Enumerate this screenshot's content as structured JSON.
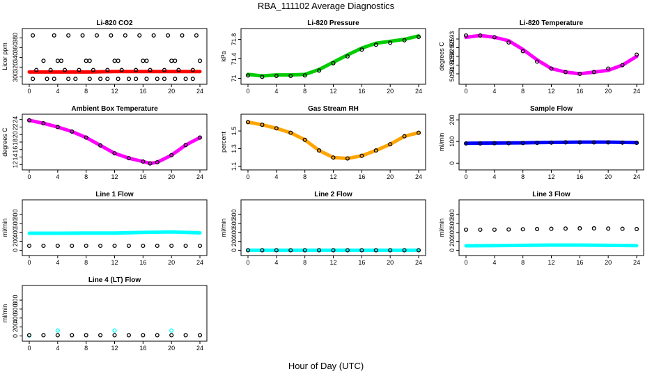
{
  "figure": {
    "title": "RBA_111102  Average Diagnostics",
    "x_axis_title": "Hour of Day (UTC)"
  },
  "colors": {
    "black": "#000000",
    "red": "#ff0000",
    "green": "#00cc00",
    "magenta": "#ff00ff",
    "orange": "#ffa500",
    "blue": "#0000ff",
    "cyan": "#00ffff"
  },
  "chart_data": [
    {
      "title": "Li-820 CO2",
      "type": "scatter",
      "ylabel": "Licor ppm",
      "xlim": [
        0,
        24
      ],
      "ylim": [
        292,
        392
      ],
      "xticks": [
        0,
        4,
        8,
        12,
        16,
        20,
        24
      ],
      "yticks": [
        300,
        320,
        340,
        360,
        380
      ],
      "series": [
        {
          "name": "raw",
          "color": "red",
          "style": "band",
          "x": [
            0,
            4,
            8,
            12,
            16,
            20,
            24
          ],
          "y": [
            310,
            310,
            310,
            311,
            311,
            311,
            311
          ]
        },
        {
          "name": "average",
          "color": "black",
          "style": "circle",
          "x": [
            0.5,
            2,
            3.5,
            4.5,
            5.5,
            7.5,
            8.5,
            9.5,
            11.5,
            12.5,
            13.5,
            15.5,
            16.5,
            17.5,
            19.5,
            20.5,
            21.5,
            23.5
          ],
          "y": [
            385,
            333,
            385,
            333,
            385,
            385,
            333,
            385,
            385,
            333,
            385,
            385,
            333,
            385,
            385,
            333,
            385,
            385
          ]
        },
        {
          "name": "average",
          "color": "black",
          "style": "circle",
          "x": [
            0.5,
            2.5,
            3.5,
            5.5,
            6.5,
            8.5,
            10,
            11,
            12.5,
            14,
            15,
            16.5,
            18,
            19,
            20.5,
            22,
            23
          ],
          "y": [
            296,
            296,
            296,
            296,
            296,
            296,
            296,
            296,
            296,
            296,
            296,
            296,
            296,
            296,
            296,
            296,
            296
          ]
        },
        {
          "name": "average",
          "color": "black",
          "style": "circle",
          "x": [
            1,
            3,
            5,
            7,
            9,
            11,
            13,
            15,
            17,
            19,
            21,
            23
          ],
          "y": [
            314,
            314,
            314,
            314,
            314,
            314,
            314,
            314,
            314,
            314,
            314,
            314
          ]
        },
        {
          "name": "average",
          "color": "black",
          "style": "circle",
          "x": [
            4,
            8,
            12,
            16,
            20,
            24
          ],
          "y": [
            333,
            333,
            333,
            333,
            333,
            333
          ]
        }
      ]
    },
    {
      "title": "Li-820 Pressure",
      "type": "scatter",
      "ylabel": "kPa",
      "xlim": [
        0,
        24
      ],
      "ylim": [
        70.95,
        71.95
      ],
      "xticks": [
        0,
        4,
        8,
        12,
        16,
        20,
        24
      ],
      "yticks": [
        71.0,
        71.4,
        71.8
      ],
      "series": [
        {
          "name": "raw",
          "color": "green",
          "style": "band",
          "x": [
            0,
            2,
            4,
            6,
            8,
            10,
            12,
            14,
            16,
            18,
            20,
            22,
            24
          ],
          "y": [
            71.08,
            71.05,
            71.07,
            71.07,
            71.08,
            71.18,
            71.33,
            71.48,
            71.62,
            71.72,
            71.76,
            71.8,
            71.87
          ]
        },
        {
          "name": "average",
          "color": "black",
          "style": "circle",
          "x": [
            0,
            2,
            4,
            6,
            8,
            10,
            12,
            14,
            16,
            18,
            20,
            22,
            24
          ],
          "y": [
            71.06,
            71.03,
            71.05,
            71.05,
            71.06,
            71.16,
            71.31,
            71.45,
            71.59,
            71.69,
            71.73,
            71.78,
            71.85
          ]
        }
      ]
    },
    {
      "title": "Li-820 Temperature",
      "type": "scatter",
      "ylabel": "degrees C",
      "xlim": [
        0,
        24
      ],
      "ylim": [
        50.906,
        50.934
      ],
      "xticks": [
        0,
        4,
        8,
        12,
        16,
        20,
        24
      ],
      "yticks": [
        50.91,
        50.915,
        50.92,
        50.925,
        50.93
      ],
      "series": [
        {
          "name": "raw",
          "color": "magenta",
          "style": "band",
          "x": [
            0,
            2,
            4,
            6,
            8,
            10,
            12,
            14,
            16,
            18,
            20,
            22,
            24
          ],
          "y": [
            50.931,
            50.932,
            50.931,
            50.929,
            50.924,
            50.918,
            50.913,
            50.911,
            50.91,
            50.911,
            50.912,
            50.915,
            50.92
          ]
        },
        {
          "name": "average",
          "color": "black",
          "style": "circle",
          "x": [
            0,
            2,
            4,
            6,
            8,
            10,
            12,
            14,
            16,
            18,
            20,
            22,
            24
          ],
          "y": [
            50.932,
            50.932,
            50.931,
            50.928,
            50.923,
            50.917,
            50.913,
            50.911,
            50.91,
            50.911,
            50.913,
            50.915,
            50.921
          ]
        }
      ]
    },
    {
      "title": "Ambient Box Temperature",
      "type": "scatter",
      "ylabel": "degrees C",
      "xlim": [
        0,
        24
      ],
      "ylim": [
        11.5,
        24.5
      ],
      "xticks": [
        0,
        4,
        8,
        12,
        16,
        20,
        24
      ],
      "yticks": [
        12,
        14,
        16,
        18,
        20,
        22,
        24
      ],
      "series": [
        {
          "name": "raw",
          "color": "magenta",
          "style": "band",
          "x": [
            0,
            2,
            4,
            6,
            8,
            10,
            12,
            14,
            16,
            17,
            18,
            20,
            22,
            24
          ],
          "y": [
            23.8,
            23.0,
            22.0,
            20.8,
            19.2,
            17.1,
            15.0,
            13.7,
            12.8,
            12.3,
            12.6,
            14.5,
            17.2,
            19.2
          ]
        },
        {
          "name": "average",
          "color": "black",
          "style": "circle",
          "x": [
            0,
            2,
            4,
            6,
            8,
            10,
            12,
            14,
            16,
            17,
            18,
            20,
            22,
            24
          ],
          "y": [
            23.8,
            23.0,
            22.0,
            20.8,
            19.2,
            17.1,
            15.0,
            13.7,
            12.8,
            12.3,
            12.6,
            14.5,
            17.2,
            19.2
          ]
        }
      ]
    },
    {
      "title": "Gas Stream RH",
      "type": "scatter",
      "ylabel": "percent",
      "xlim": [
        0,
        24
      ],
      "ylim": [
        1.1,
        1.65
      ],
      "xticks": [
        0,
        4,
        8,
        12,
        16,
        20,
        24
      ],
      "yticks": [
        1.1,
        1.3,
        1.5
      ],
      "series": [
        {
          "name": "raw",
          "color": "orange",
          "style": "band",
          "x": [
            0,
            2,
            4,
            6,
            8,
            10,
            12,
            14,
            16,
            18,
            20,
            22,
            24
          ],
          "y": [
            1.6,
            1.57,
            1.53,
            1.48,
            1.4,
            1.28,
            1.2,
            1.19,
            1.22,
            1.28,
            1.35,
            1.44,
            1.48
          ]
        },
        {
          "name": "average",
          "color": "black",
          "style": "circle",
          "x": [
            0,
            2,
            4,
            6,
            8,
            10,
            12,
            14,
            16,
            18,
            20,
            22,
            24
          ],
          "y": [
            1.6,
            1.57,
            1.53,
            1.48,
            1.4,
            1.28,
            1.2,
            1.19,
            1.22,
            1.28,
            1.35,
            1.44,
            1.48
          ]
        }
      ]
    },
    {
      "title": "Sample Flow",
      "type": "scatter",
      "ylabel": "ml/min",
      "xlim": [
        0,
        24
      ],
      "ylim": [
        -15,
        210
      ],
      "xticks": [
        0,
        4,
        8,
        12,
        16,
        20,
        24
      ],
      "yticks": [
        0,
        100,
        200
      ],
      "series": [
        {
          "name": "raw",
          "color": "blue",
          "style": "band",
          "x": [
            0,
            4,
            8,
            12,
            16,
            20,
            24
          ],
          "y": [
            92,
            93,
            94,
            96,
            97,
            97,
            95
          ]
        },
        {
          "name": "average",
          "color": "black",
          "style": "circle",
          "x": [
            0,
            2,
            4,
            6,
            8,
            10,
            12,
            14,
            16,
            18,
            20,
            22,
            24
          ],
          "y": [
            91,
            91,
            92,
            92,
            93,
            94,
            95,
            96,
            96,
            96,
            96,
            95,
            94
          ]
        }
      ]
    },
    {
      "title": "Line 1 Flow",
      "type": "scatter",
      "ylabel": "ml/min",
      "xlim": [
        0,
        24
      ],
      "ylim": [
        -40,
        1050
      ],
      "xticks": [
        0,
        4,
        8,
        12,
        16,
        20,
        24
      ],
      "yticks": [
        0,
        200,
        400,
        600,
        800
      ],
      "series": [
        {
          "name": "raw",
          "color": "cyan",
          "style": "band",
          "x": [
            0,
            4,
            8,
            12,
            16,
            20,
            24
          ],
          "y": [
            380,
            380,
            385,
            385,
            400,
            410,
            390
          ]
        },
        {
          "name": "average",
          "color": "black",
          "style": "circle",
          "x": [
            0,
            2,
            4,
            6,
            8,
            10,
            12,
            14,
            16,
            18,
            20,
            22,
            24
          ],
          "y": [
            100,
            100,
            100,
            100,
            100,
            100,
            100,
            100,
            100,
            100,
            100,
            100,
            100
          ]
        }
      ]
    },
    {
      "title": "Line 2 Flow",
      "type": "scatter",
      "ylabel": "ml/min",
      "xlim": [
        0,
        24
      ],
      "ylim": [
        -40,
        1050
      ],
      "xticks": [
        0,
        4,
        8,
        12,
        16,
        20,
        24
      ],
      "yticks": [
        0,
        200,
        400,
        600,
        800
      ],
      "series": [
        {
          "name": "raw",
          "color": "cyan",
          "style": "band",
          "x": [
            0,
            24
          ],
          "y": [
            0,
            0
          ]
        },
        {
          "name": "average",
          "color": "black",
          "style": "circle",
          "x": [
            0,
            2,
            4,
            6,
            8,
            10,
            12,
            14,
            16,
            18,
            20,
            22,
            24
          ],
          "y": [
            0,
            0,
            0,
            0,
            0,
            0,
            0,
            0,
            0,
            0,
            0,
            0,
            0
          ]
        }
      ]
    },
    {
      "title": "Line 3 Flow",
      "type": "scatter",
      "ylabel": "ml/min",
      "xlim": [
        0,
        24
      ],
      "ylim": [
        -40,
        1050
      ],
      "xticks": [
        0,
        4,
        8,
        12,
        16,
        20,
        24
      ],
      "yticks": [
        0,
        200,
        400,
        600,
        800
      ],
      "series": [
        {
          "name": "raw",
          "color": "cyan",
          "style": "band",
          "x": [
            0,
            4,
            8,
            12,
            16,
            20,
            24
          ],
          "y": [
            100,
            105,
            110,
            115,
            115,
            110,
            105
          ]
        },
        {
          "name": "average",
          "color": "black",
          "style": "circle",
          "x": [
            0,
            2,
            4,
            6,
            8,
            10,
            12,
            14,
            16,
            18,
            20,
            22,
            24
          ],
          "y": [
            460,
            460,
            460,
            465,
            470,
            475,
            480,
            485,
            490,
            490,
            485,
            480,
            475
          ]
        }
      ]
    },
    {
      "title": "Line 4 (LT) Flow",
      "type": "scatter",
      "ylabel": "ml/min",
      "xlim": [
        0,
        24
      ],
      "ylim": [
        -40,
        1050
      ],
      "xticks": [
        0,
        4,
        8,
        12,
        16,
        20,
        24
      ],
      "yticks": [
        0,
        200,
        400,
        600,
        800
      ],
      "series": [
        {
          "name": "raw",
          "color": "cyan",
          "style": "circle",
          "x": [
            0,
            4,
            12,
            20
          ],
          "y": [
            10,
            120,
            120,
            120
          ]
        },
        {
          "name": "average",
          "color": "black",
          "style": "circle",
          "x": [
            0,
            2,
            4,
            6,
            8,
            10,
            12,
            14,
            16,
            18,
            20,
            22,
            24
          ],
          "y": [
            15,
            15,
            15,
            15,
            15,
            15,
            15,
            15,
            15,
            15,
            15,
            15,
            15
          ]
        }
      ]
    }
  ]
}
